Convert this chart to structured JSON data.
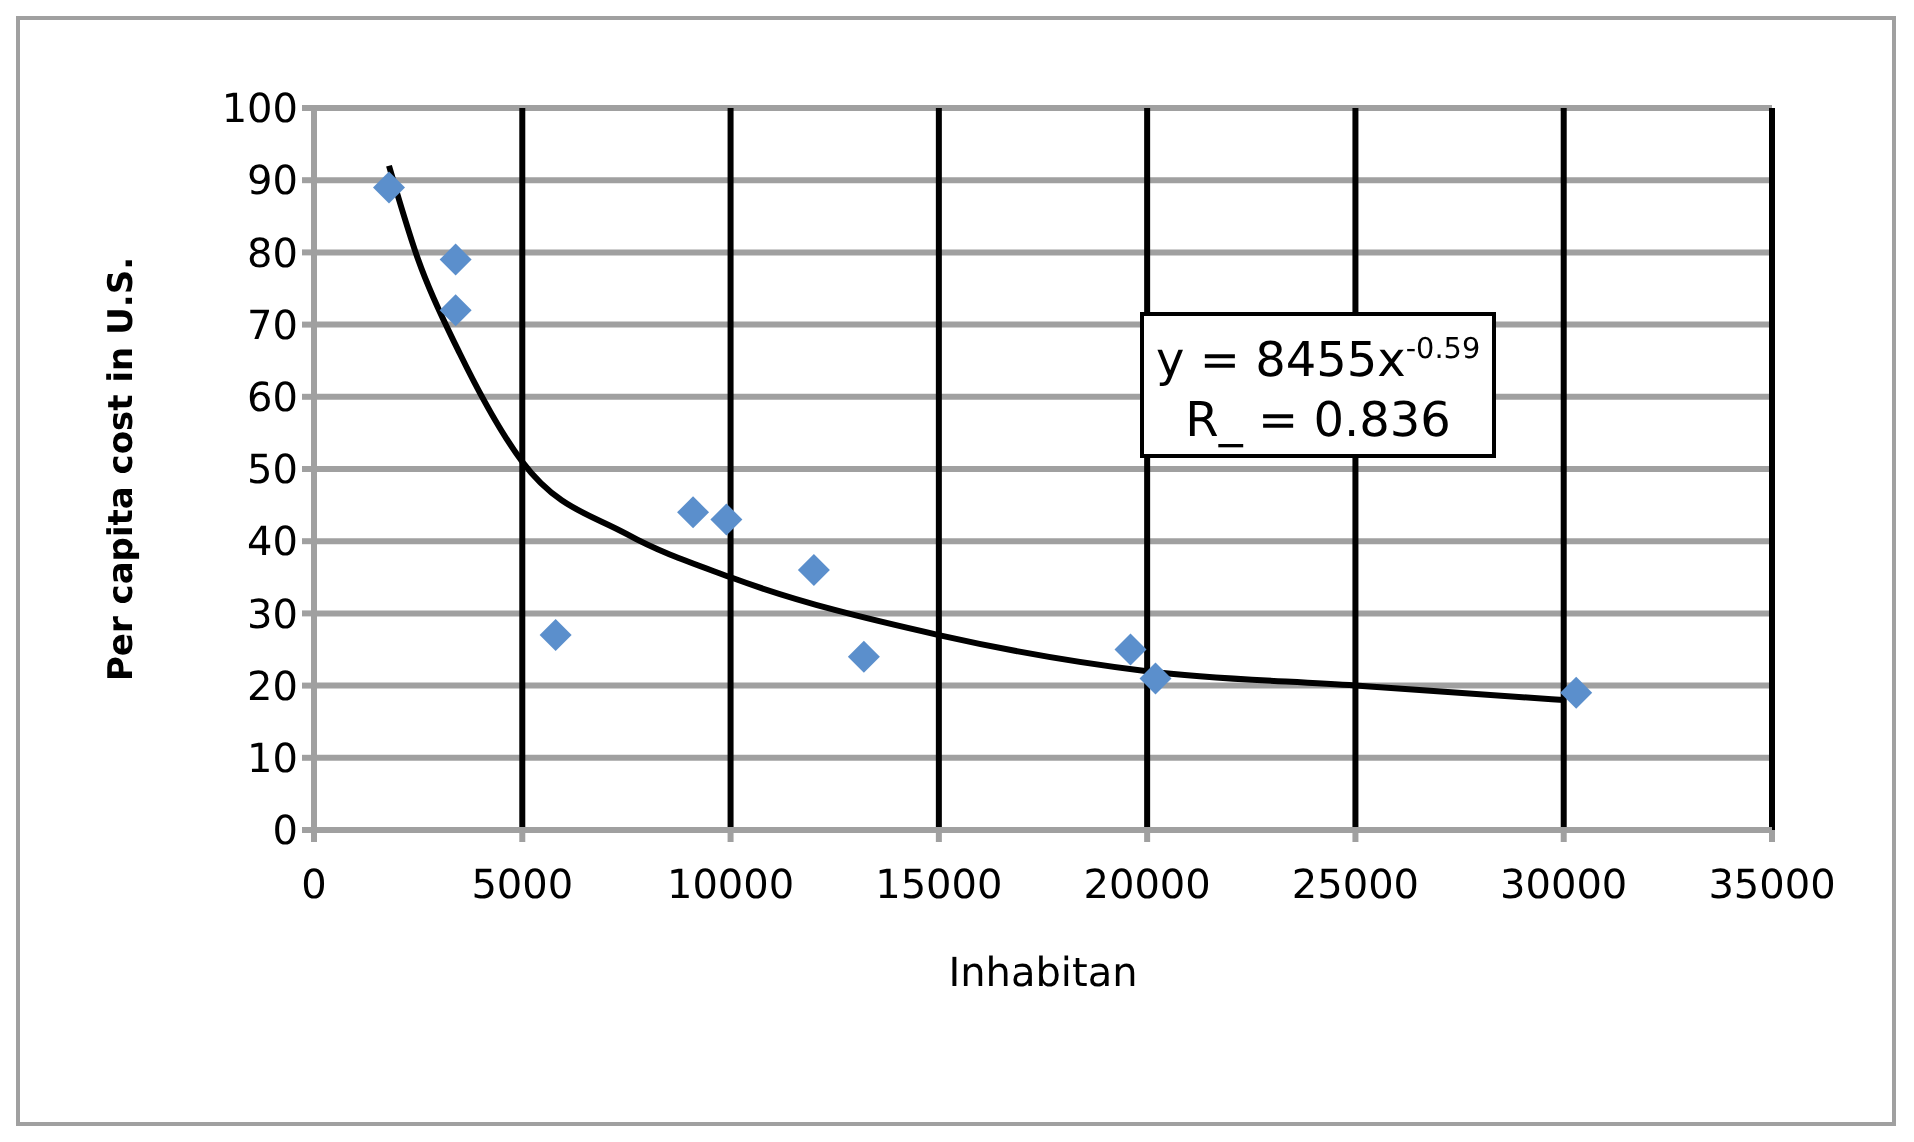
{
  "chart_data": {
    "type": "scatter",
    "xlabel": "Inhabitan",
    "ylabel": "Per capita cost in U.S.",
    "series": [
      {
        "color": "#5b8fcc",
        "marker": "diamond",
        "x": [
          1800,
          3400,
          3400,
          5800,
          9100,
          9900,
          12000,
          13200,
          19600,
          20200,
          30300
        ],
        "values": [
          89,
          79,
          72,
          27,
          44,
          43,
          36,
          24,
          25,
          21,
          19
        ]
      },
      {
        "type": "line",
        "color": "#000000",
        "marker": "none",
        "x": [
          1800,
          2500,
          3500,
          5000,
          7500,
          10000,
          15000,
          20000,
          25000,
          30000
        ],
        "values": [
          92,
          79,
          66,
          51,
          41,
          35,
          27,
          22,
          20,
          18
        ]
      }
    ],
    "annotations": [
      "y = 8455x$^{-0.59}$",
      "R_ = 0.836"
    ],
    "xlim": [
      0,
      35000
    ],
    "xticks": [
      0,
      5000,
      10000,
      15000,
      20000,
      25000,
      30000,
      35000
    ],
    "ylim": [
      0,
      100
    ],
    "yticks": [
      0,
      10,
      20,
      30,
      40,
      50,
      60,
      70,
      80,
      90,
      100
    ],
    "grid": true
  }
}
